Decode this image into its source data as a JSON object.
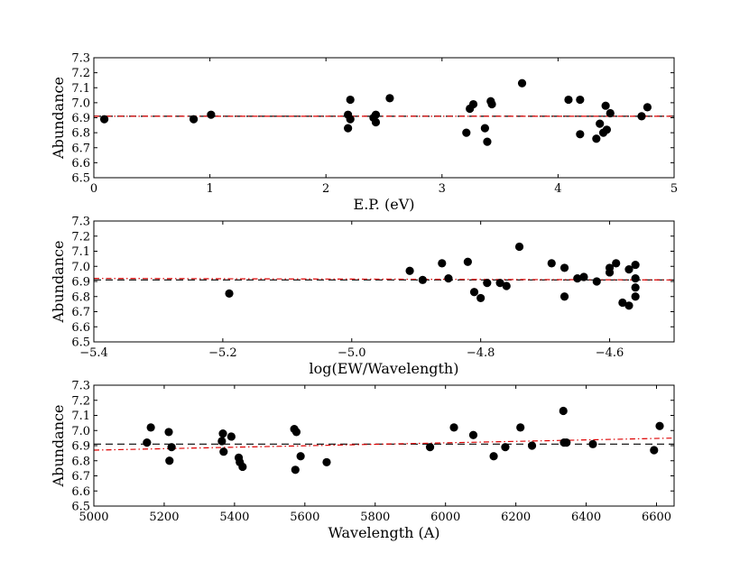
{
  "colors": {
    "fit": "#000000",
    "trend": "#dd0000",
    "points": "#000000"
  },
  "chart_data": [
    {
      "type": "scatter",
      "xlabel": "E.P. (eV)",
      "ylabel": "Abundance",
      "xlim": [
        0,
        5
      ],
      "ylim": [
        6.5,
        7.3
      ],
      "xticks": [
        0,
        1,
        2,
        3,
        4,
        5
      ],
      "xtick_labels": [
        "0",
        "1",
        "2",
        "3",
        "4",
        "5"
      ],
      "yticks": [
        6.5,
        6.6,
        6.7,
        6.8,
        6.9,
        7.0,
        7.1,
        7.2,
        7.3
      ],
      "ytick_labels": [
        "6.5",
        "6.6",
        "6.7",
        "6.8",
        "6.9",
        "7.0",
        "7.1",
        "7.2",
        "7.3"
      ],
      "mean_line": {
        "y": 6.91,
        "style": "dashed",
        "color": "black"
      },
      "trend_line": {
        "y_start": 6.91,
        "y_end": 6.91,
        "style": "dash-dot",
        "color": "red"
      },
      "points": [
        [
          0.09,
          6.89
        ],
        [
          0.86,
          6.89
        ],
        [
          1.01,
          6.92
        ],
        [
          2.19,
          6.92
        ],
        [
          2.19,
          6.83
        ],
        [
          2.21,
          7.02
        ],
        [
          2.21,
          6.89
        ],
        [
          2.41,
          6.9
        ],
        [
          2.43,
          6.92
        ],
        [
          2.43,
          6.87
        ],
        [
          2.55,
          7.03
        ],
        [
          3.21,
          6.8
        ],
        [
          3.24,
          6.96
        ],
        [
          3.27,
          6.99
        ],
        [
          3.37,
          6.83
        ],
        [
          3.39,
          6.74
        ],
        [
          3.42,
          7.01
        ],
        [
          3.43,
          6.99
        ],
        [
          3.69,
          7.13
        ],
        [
          4.09,
          7.02
        ],
        [
          4.19,
          7.02
        ],
        [
          4.19,
          6.79
        ],
        [
          4.33,
          6.76
        ],
        [
          4.36,
          6.86
        ],
        [
          4.39,
          6.8
        ],
        [
          4.41,
          6.98
        ],
        [
          4.42,
          6.82
        ],
        [
          4.45,
          6.93
        ],
        [
          4.72,
          6.91
        ],
        [
          4.77,
          6.97
        ]
      ]
    },
    {
      "type": "scatter",
      "xlabel": "log(EW/Wavelength)",
      "ylabel": "Abundance",
      "xlim": [
        -5.4,
        -4.5
      ],
      "ylim": [
        6.5,
        7.3
      ],
      "xticks": [
        -5.4,
        -5.2,
        -5.0,
        -4.8,
        -4.6
      ],
      "xtick_labels": [
        "−5.4",
        "−5.2",
        "−5.0",
        "−4.8",
        "−4.6"
      ],
      "yticks": [
        6.5,
        6.6,
        6.7,
        6.8,
        6.9,
        7.0,
        7.1,
        7.2,
        7.3
      ],
      "ytick_labels": [
        "6.5",
        "6.6",
        "6.7",
        "6.8",
        "6.9",
        "7.0",
        "7.1",
        "7.2",
        "7.3"
      ],
      "mean_line": {
        "y": 6.91,
        "style": "dashed",
        "color": "black"
      },
      "trend_line": {
        "y_start": 6.92,
        "y_end": 6.91,
        "style": "dash-dot",
        "color": "red"
      },
      "points": [
        [
          -5.19,
          6.82
        ],
        [
          -4.91,
          6.97
        ],
        [
          -4.89,
          6.91
        ],
        [
          -4.86,
          7.02
        ],
        [
          -4.85,
          6.92
        ],
        [
          -4.82,
          7.03
        ],
        [
          -4.81,
          6.83
        ],
        [
          -4.8,
          6.79
        ],
        [
          -4.79,
          6.89
        ],
        [
          -4.77,
          6.89
        ],
        [
          -4.76,
          6.87
        ],
        [
          -4.74,
          7.13
        ],
        [
          -4.69,
          7.02
        ],
        [
          -4.67,
          6.99
        ],
        [
          -4.67,
          6.8
        ],
        [
          -4.65,
          6.92
        ],
        [
          -4.64,
          6.93
        ],
        [
          -4.62,
          6.9
        ],
        [
          -4.6,
          6.99
        ],
        [
          -4.6,
          6.96
        ],
        [
          -4.59,
          7.02
        ],
        [
          -4.58,
          6.76
        ],
        [
          -4.57,
          6.98
        ],
        [
          -4.57,
          6.74
        ],
        [
          -4.56,
          7.01
        ],
        [
          -4.56,
          6.92
        ],
        [
          -4.56,
          6.86
        ],
        [
          -4.56,
          6.8
        ]
      ]
    },
    {
      "type": "scatter",
      "xlabel": "Wavelength (A)",
      "ylabel": "Abundance",
      "xlim": [
        5000,
        6650
      ],
      "ylim": [
        6.5,
        7.3
      ],
      "xticks": [
        5000,
        5200,
        5400,
        5600,
        5800,
        6000,
        6200,
        6400,
        6600
      ],
      "xtick_labels": [
        "5000",
        "5200",
        "5400",
        "5600",
        "5800",
        "6000",
        "6200",
        "6400",
        "6600"
      ],
      "yticks": [
        6.5,
        6.6,
        6.7,
        6.8,
        6.9,
        7.0,
        7.1,
        7.2,
        7.3
      ],
      "ytick_labels": [
        "6.5",
        "6.6",
        "6.7",
        "6.8",
        "6.9",
        "7.0",
        "7.1",
        "7.2",
        "7.3"
      ],
      "mean_line": {
        "y": 6.91,
        "style": "dashed",
        "color": "black"
      },
      "trend_line": {
        "y_start": 6.87,
        "y_end": 6.95,
        "style": "dash-dot",
        "color": "red"
      },
      "points": [
        [
          5151,
          6.92
        ],
        [
          5162,
          7.02
        ],
        [
          5213,
          6.99
        ],
        [
          5215,
          6.8
        ],
        [
          5221,
          6.89
        ],
        [
          5364,
          6.93
        ],
        [
          5367,
          6.98
        ],
        [
          5369,
          6.86
        ],
        [
          5391,
          6.96
        ],
        [
          5412,
          6.82
        ],
        [
          5415,
          6.79
        ],
        [
          5423,
          6.76
        ],
        [
          5570,
          7.01
        ],
        [
          5573,
          6.74
        ],
        [
          5576,
          6.99
        ],
        [
          5588,
          6.83
        ],
        [
          5662,
          6.79
        ],
        [
          5956,
          6.89
        ],
        [
          6024,
          7.02
        ],
        [
          6079,
          6.97
        ],
        [
          6137,
          6.83
        ],
        [
          6170,
          6.89
        ],
        [
          6213,
          7.02
        ],
        [
          6246,
          6.9
        ],
        [
          6335,
          7.13
        ],
        [
          6337,
          6.92
        ],
        [
          6344,
          6.92
        ],
        [
          6419,
          6.91
        ],
        [
          6593,
          6.87
        ],
        [
          6609,
          7.03
        ]
      ]
    }
  ]
}
